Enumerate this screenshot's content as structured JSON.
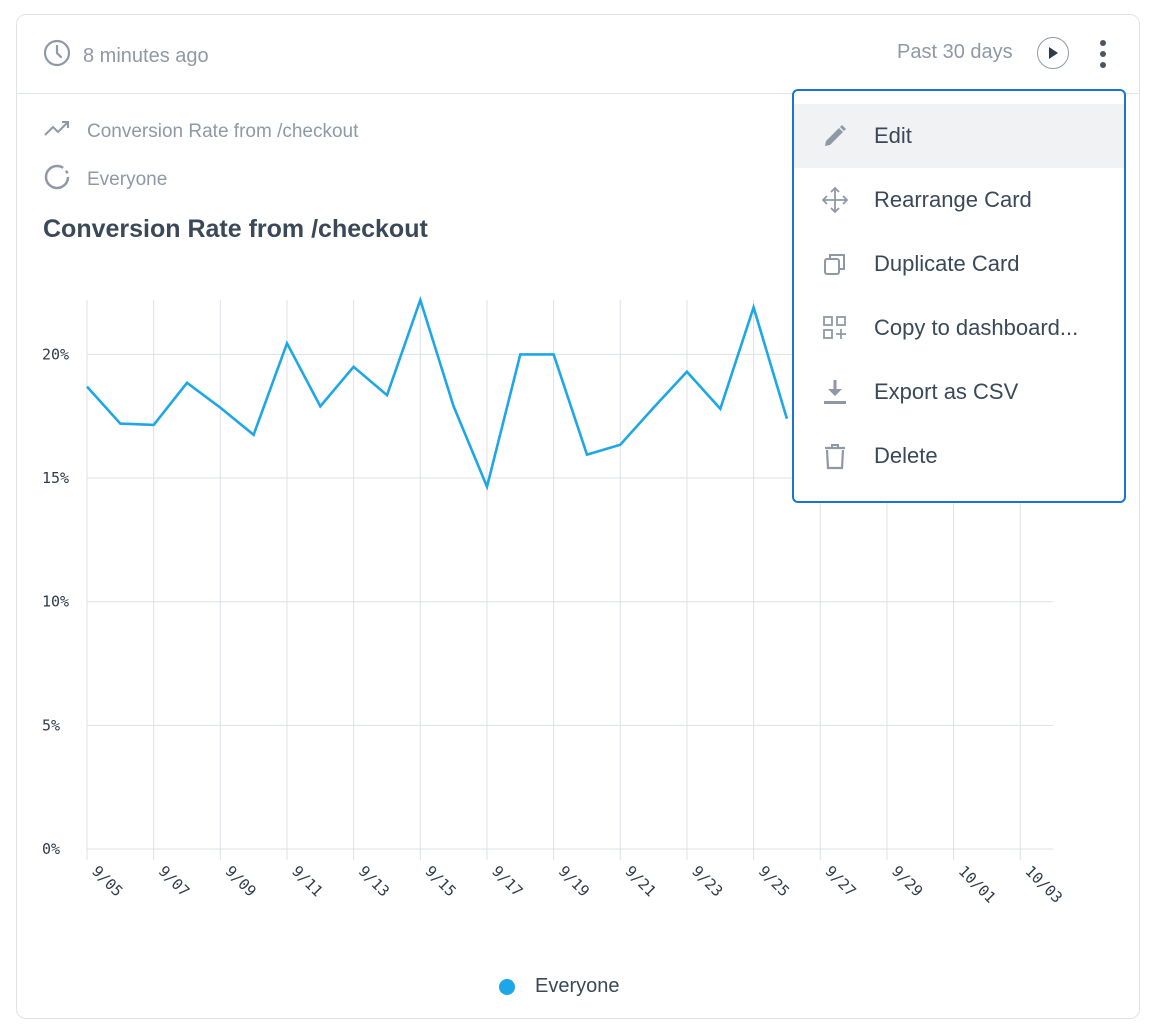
{
  "header": {
    "updated_text": "8 minutes ago",
    "time_range": "Past 30 days"
  },
  "meta": {
    "metric_label": "Conversion Rate from /checkout",
    "segment_label": "Everyone"
  },
  "title": "Conversion Rate from /checkout",
  "menu": {
    "items": [
      {
        "label": "Edit",
        "icon": "pencil-icon",
        "active": true
      },
      {
        "label": "Rearrange Card",
        "icon": "move-arrows-icon"
      },
      {
        "label": "Duplicate Card",
        "icon": "duplicate-icon"
      },
      {
        "label": "Copy to dashboard...",
        "icon": "grid-plus-icon"
      },
      {
        "label": "Export as CSV",
        "icon": "download-icon"
      },
      {
        "label": "Delete",
        "icon": "trash-icon"
      }
    ]
  },
  "legend": [
    {
      "label": "Everyone",
      "color": "#1ea7e6"
    }
  ],
  "colors": {
    "series": "#1ea7e6",
    "menu_border": "#1b73d3"
  },
  "chart_data": {
    "type": "line",
    "xlabel": "",
    "ylabel": "",
    "ylim": [
      0,
      22.2
    ],
    "yticks": [
      "0%",
      "5%",
      "10%",
      "15%",
      "20%"
    ],
    "ytick_values": [
      0,
      5,
      10,
      15,
      20
    ],
    "xticks": [
      "9/05",
      "9/07",
      "9/09",
      "9/11",
      "9/13",
      "9/15",
      "9/17",
      "9/19",
      "9/21",
      "9/23",
      "9/25",
      "9/27",
      "9/29",
      "10/01",
      "10/03"
    ],
    "x": [
      "9/05",
      "9/06",
      "9/07",
      "9/08",
      "9/09",
      "9/10",
      "9/11",
      "9/12",
      "9/13",
      "9/14",
      "9/15",
      "9/16",
      "9/17",
      "9/18",
      "9/19",
      "9/20",
      "9/21",
      "9/22",
      "9/23",
      "9/24",
      "9/25",
      "9/26",
      "9/27",
      "9/28",
      "9/29",
      "9/30",
      "10/01",
      "10/02",
      "10/03"
    ],
    "series": [
      {
        "name": "Everyone",
        "values": [
          18.7,
          17.2,
          17.15,
          18.85,
          17.85,
          16.75,
          20.45,
          17.9,
          19.5,
          18.35,
          22.2,
          17.9,
          14.65,
          20.0,
          20.0,
          15.95,
          16.35,
          17.85,
          19.3,
          17.8,
          21.9,
          17.4,
          null,
          null,
          null,
          null,
          null,
          null,
          null
        ]
      }
    ],
    "grid": true,
    "legend_position": "bottom-center"
  }
}
